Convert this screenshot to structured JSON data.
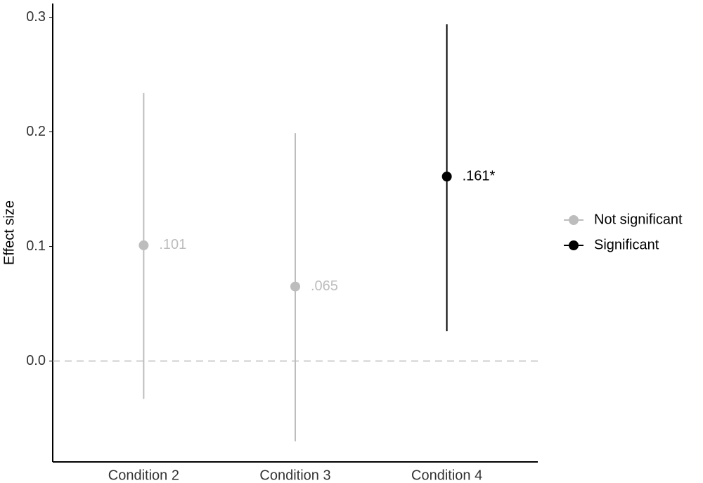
{
  "chart_data": {
    "type": "pointrange",
    "y_label": "Effect size",
    "categories": [
      "Condition 2",
      "Condition 3",
      "Condition 4"
    ],
    "series": [
      {
        "name": "Not significant",
        "color": "#bdbdbd",
        "values": [
          0.101,
          0.065,
          null
        ],
        "lower": [
          -0.033,
          -0.07,
          null
        ],
        "upper": [
          0.234,
          0.199,
          null
        ],
        "value_labels": [
          ".101",
          ".065",
          null
        ]
      },
      {
        "name": "Significant",
        "color": "#000000",
        "values": [
          null,
          null,
          0.161
        ],
        "lower": [
          null,
          null,
          0.026
        ],
        "upper": [
          null,
          null,
          0.294
        ],
        "value_labels": [
          null,
          null,
          ".161*"
        ]
      }
    ],
    "ylim": [
      -0.088,
      0.312
    ],
    "yticks": [
      {
        "value": 0,
        "label": "0.0"
      },
      0.1,
      0.2,
      0.3
    ],
    "reference_line": 0,
    "grid": false,
    "legend": "right"
  }
}
